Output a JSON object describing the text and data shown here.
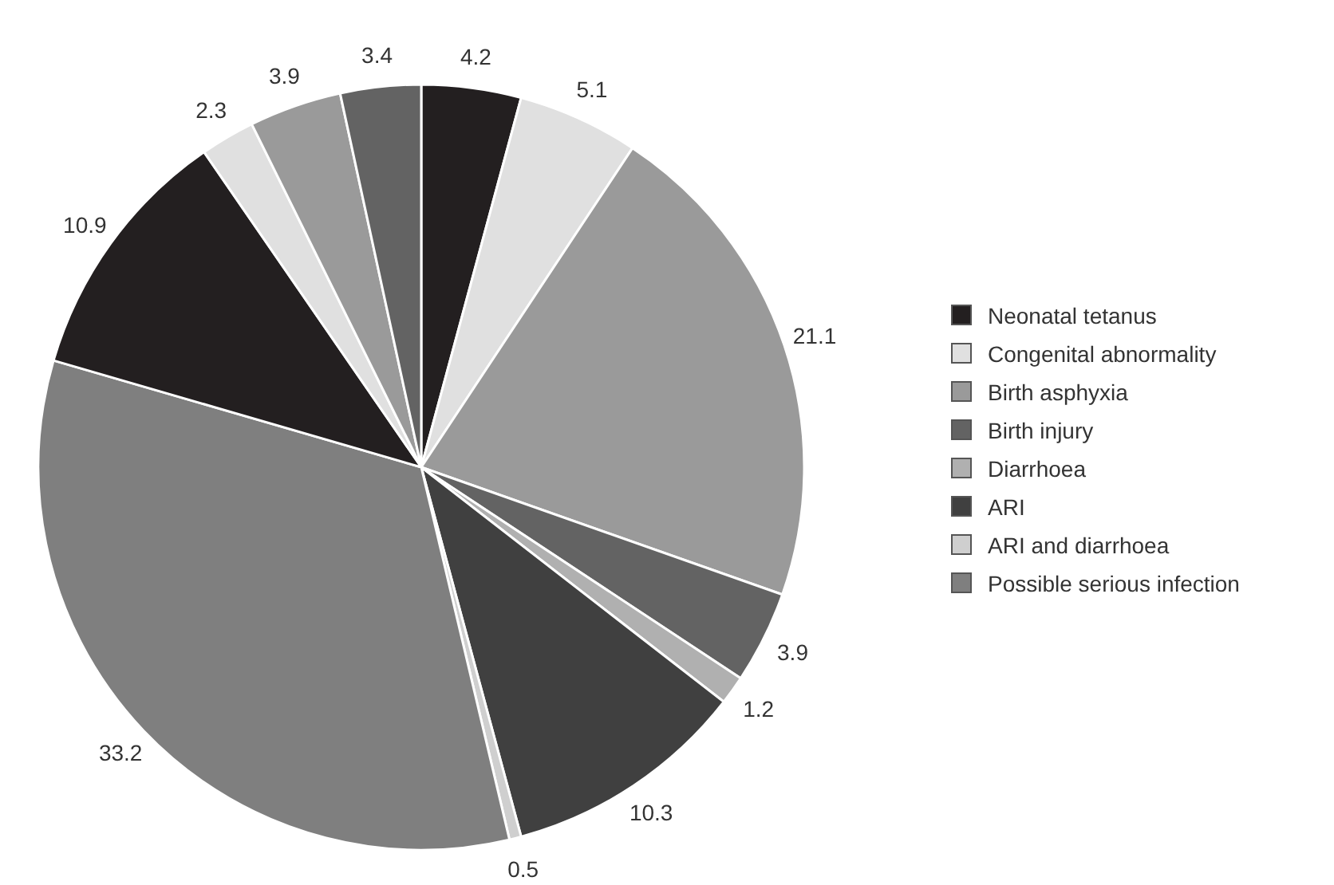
{
  "chart_data": {
    "type": "pie",
    "categories": [
      "Neonatal tetanus",
      "Congenital abnormality",
      "Birth asphyxia",
      "Birth injury",
      "Diarrhoea",
      "ARI",
      "ARI and diarrhoea",
      "Possible serious infection",
      null,
      null,
      null,
      null
    ],
    "values": [
      4.2,
      5.1,
      21.1,
      3.9,
      1.2,
      10.3,
      0.5,
      33.2,
      10.9,
      2.3,
      3.9,
      3.4
    ],
    "colors": [
      "#231f20",
      "#e0e0e0",
      "#9a9a9a",
      "#636363",
      "#b0b0b0",
      "#404040",
      "#cfcfcf",
      "#7f7f7f",
      "#231f20",
      "#e0e0e0",
      "#9a9a9a",
      "#636363"
    ],
    "data_labels": true,
    "legend": "right"
  }
}
